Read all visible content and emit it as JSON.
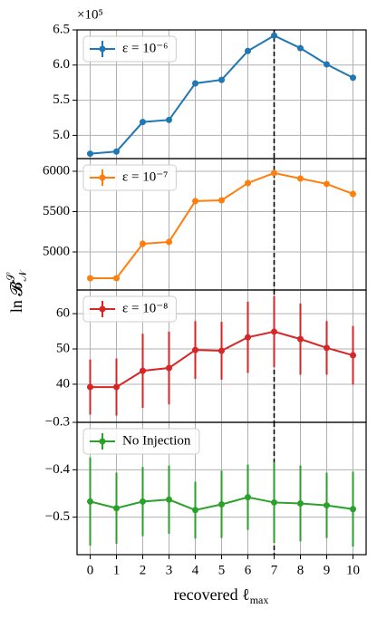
{
  "axes": {
    "x": [
      0,
      1,
      2,
      3,
      4,
      5,
      6,
      7,
      8,
      9,
      10
    ],
    "xlim": [
      -0.5,
      10.5
    ],
    "xticks": [
      0,
      1,
      2,
      3,
      4,
      5,
      6,
      7,
      8,
      9,
      10
    ],
    "xlabel": {
      "main": "recovered ℓ",
      "sub": "max"
    },
    "ylabel": {
      "main": "ln 𝓑",
      "sub": "𝒩",
      "sup": "𝒮"
    },
    "vline": 7,
    "grid": true
  },
  "chart_data": [
    {
      "type": "line",
      "offset_label": "×10⁵",
      "ylim": [
        4.67,
        6.5
      ],
      "yticks": [
        {
          "value": 5,
          "label": "5.0"
        },
        5.5,
        {
          "value": 6,
          "label": "6.0"
        },
        6.5
      ],
      "series": [
        {
          "name": "ε = 10⁻⁶",
          "color": "#1f77b4",
          "values": [
            4.74,
            4.77,
            5.19,
            5.22,
            5.74,
            5.79,
            6.2,
            6.42,
            6.24,
            6.01,
            5.82
          ]
        }
      ]
    },
    {
      "type": "line",
      "ylim": [
        4528,
        6157
      ],
      "yticks": [
        5000,
        5500,
        6000
      ],
      "series": [
        {
          "name": "ε = 10⁻⁷",
          "color": "#ff7f0e",
          "values": [
            4674,
            4674,
            5101,
            5124,
            5630,
            5640,
            5854,
            5978,
            5910,
            5843,
            5719
          ],
          "errors": [
            30,
            30,
            40,
            40,
            30,
            35,
            40,
            40,
            35,
            35,
            40
          ]
        }
      ]
    },
    {
      "type": "line",
      "ylim": [
        29.2,
        66.7
      ],
      "yticks": [
        40,
        50,
        60
      ],
      "series": [
        {
          "name": "ε = 10⁻⁸",
          "color": "#d62728",
          "values": [
            39.2,
            39.2,
            43.8,
            44.6,
            49.7,
            49.5,
            53.3,
            54.9,
            52.8,
            50.3,
            48.2
          ],
          "errors": [
            7.8,
            8.1,
            10.5,
            10.3,
            8.2,
            8.2,
            10.1,
            10.1,
            10.1,
            7.6,
            8.3
          ]
        }
      ]
    },
    {
      "type": "line",
      "ylim": [
        -0.579,
        -0.3
      ],
      "yticks": [
        {
          "value": -0.3,
          "label": "−0.3"
        },
        {
          "value": -0.4,
          "label": "−0.4"
        },
        {
          "value": -0.5,
          "label": "−0.5"
        }
      ],
      "series": [
        {
          "name": "No Injection",
          "color": "#2ca02c",
          "values": [
            -0.467,
            -0.481,
            -0.467,
            -0.463,
            -0.485,
            -0.473,
            -0.458,
            -0.469,
            -0.471,
            -0.475,
            -0.483
          ],
          "errors": [
            0.093,
            0.075,
            0.073,
            0.072,
            0.06,
            0.071,
            0.069,
            0.085,
            0.08,
            0.069,
            0.079
          ]
        }
      ]
    }
  ]
}
